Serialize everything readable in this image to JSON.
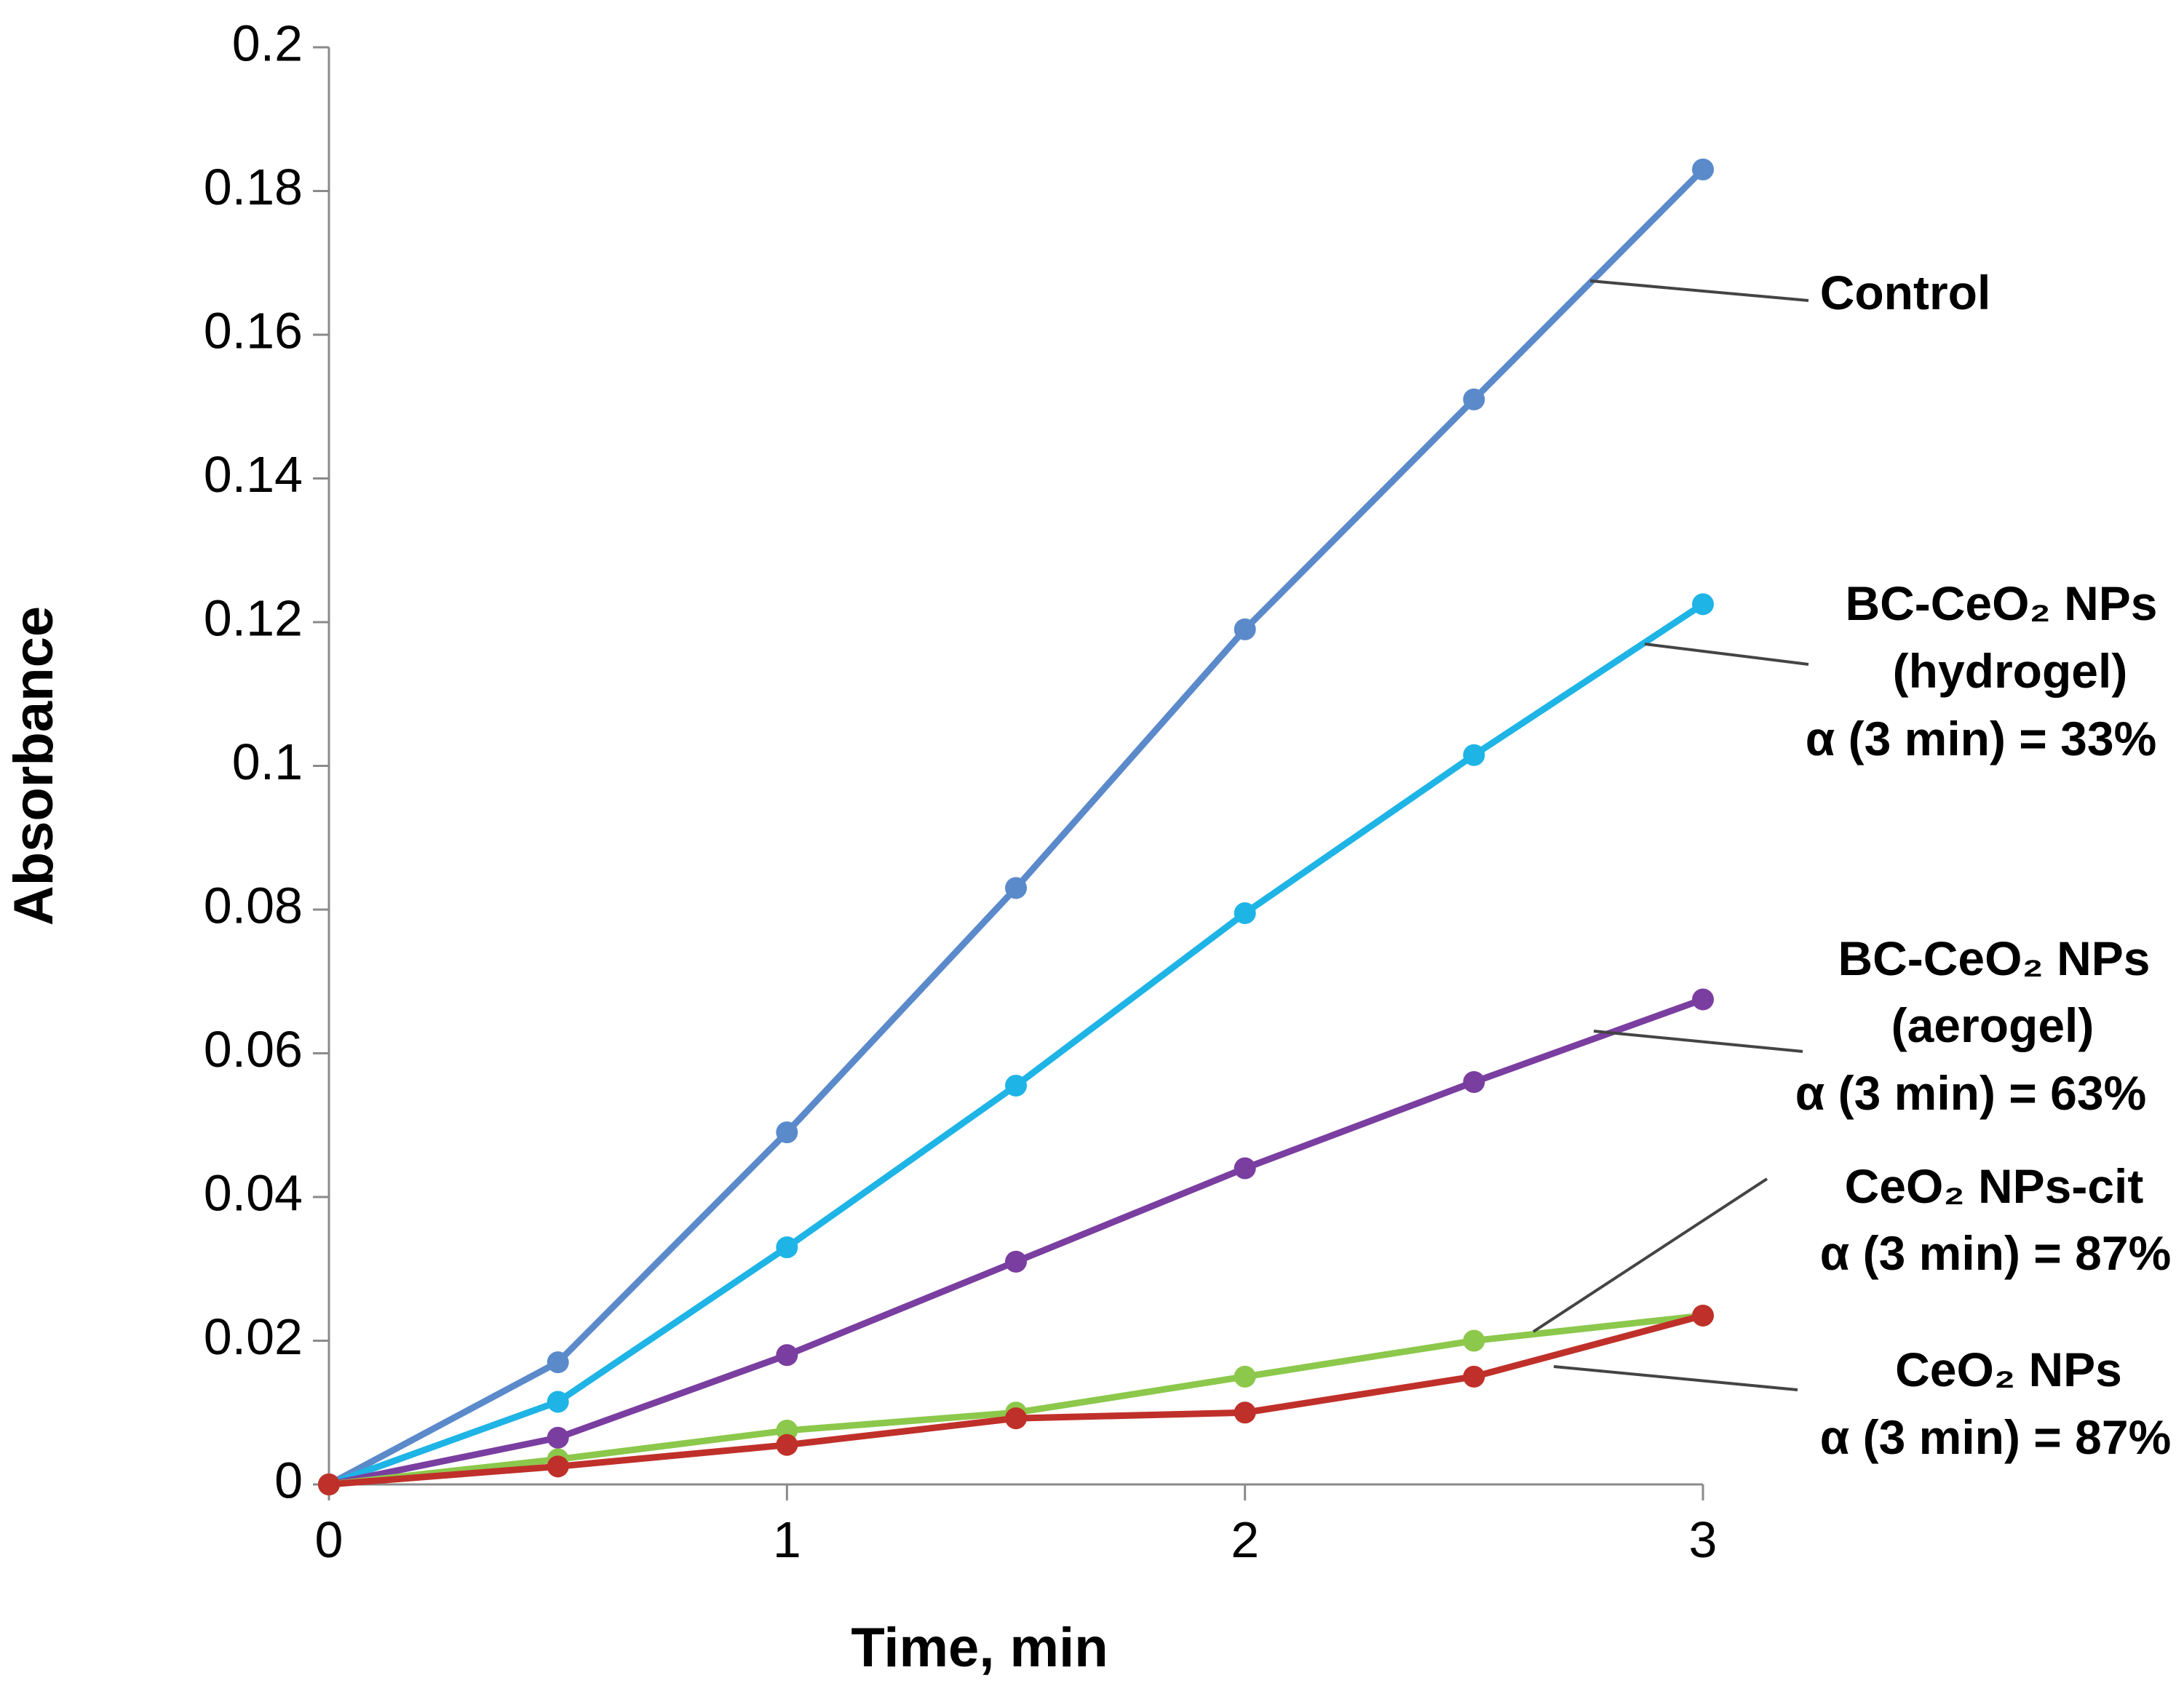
{
  "chart_data": {
    "type": "line",
    "title": "",
    "xlabel": "Time, min",
    "ylabel": "Absorbance",
    "xlim": [
      0,
      3
    ],
    "ylim": [
      0,
      0.2
    ],
    "xticks": [
      "0",
      "1",
      "2",
      "3"
    ],
    "yticks": [
      "0",
      "0.02",
      "0.04",
      "0.06",
      "0.08",
      "0.1",
      "0.12",
      "0.14",
      "0.16",
      "0.18",
      "0.2"
    ],
    "grid": false,
    "x": [
      0,
      0.5,
      1,
      1.5,
      2,
      2.5,
      3
    ],
    "series": [
      {
        "name": "Control",
        "color": "#5B8ACB",
        "values": [
          0,
          0.017,
          0.049,
          0.083,
          0.119,
          0.151,
          0.183
        ]
      },
      {
        "name": "BC-CeO2 NPs (hydrogel)",
        "color": "#1EB4E6",
        "values": [
          0,
          0.0115,
          0.033,
          0.0555,
          0.0795,
          0.1015,
          0.1225
        ]
      },
      {
        "name": "BC-CeO2 NPs (aerogel)",
        "color": "#7A3EA0",
        "values": [
          0,
          0.0065,
          0.018,
          0.031,
          0.044,
          0.056,
          0.0675
        ]
      },
      {
        "name": "CeO2 NPs-cit",
        "color": "#8CC84B",
        "values": [
          0,
          0.0035,
          0.0075,
          0.01,
          0.015,
          0.02,
          0.0235
        ]
      },
      {
        "name": "CeO2 NPs",
        "color": "#C0302A",
        "values": [
          0,
          0.0025,
          0.0055,
          0.0092,
          0.01,
          0.015,
          0.0235
        ]
      }
    ],
    "annotations": [
      {
        "series": "Control",
        "lines": [
          "Control"
        ]
      },
      {
        "series": "BC-CeO2 NPs (hydrogel)",
        "lines": [
          "BC-CeO₂ NPs",
          "(hydrogel)",
          "α (3 min) = 33%"
        ]
      },
      {
        "series": "BC-CeO2 NPs (aerogel)",
        "lines": [
          "BC-CeO₂ NPs",
          "(aerogel)",
          "α (3 min) = 63%"
        ]
      },
      {
        "series": "CeO2 NPs-cit",
        "lines": [
          "CeO₂ NPs-cit",
          "α (3 min) = 87%"
        ]
      },
      {
        "series": "CeO2 NPs",
        "lines": [
          "CeO₂ NPs",
          "α (3 min) = 87%"
        ]
      }
    ]
  }
}
